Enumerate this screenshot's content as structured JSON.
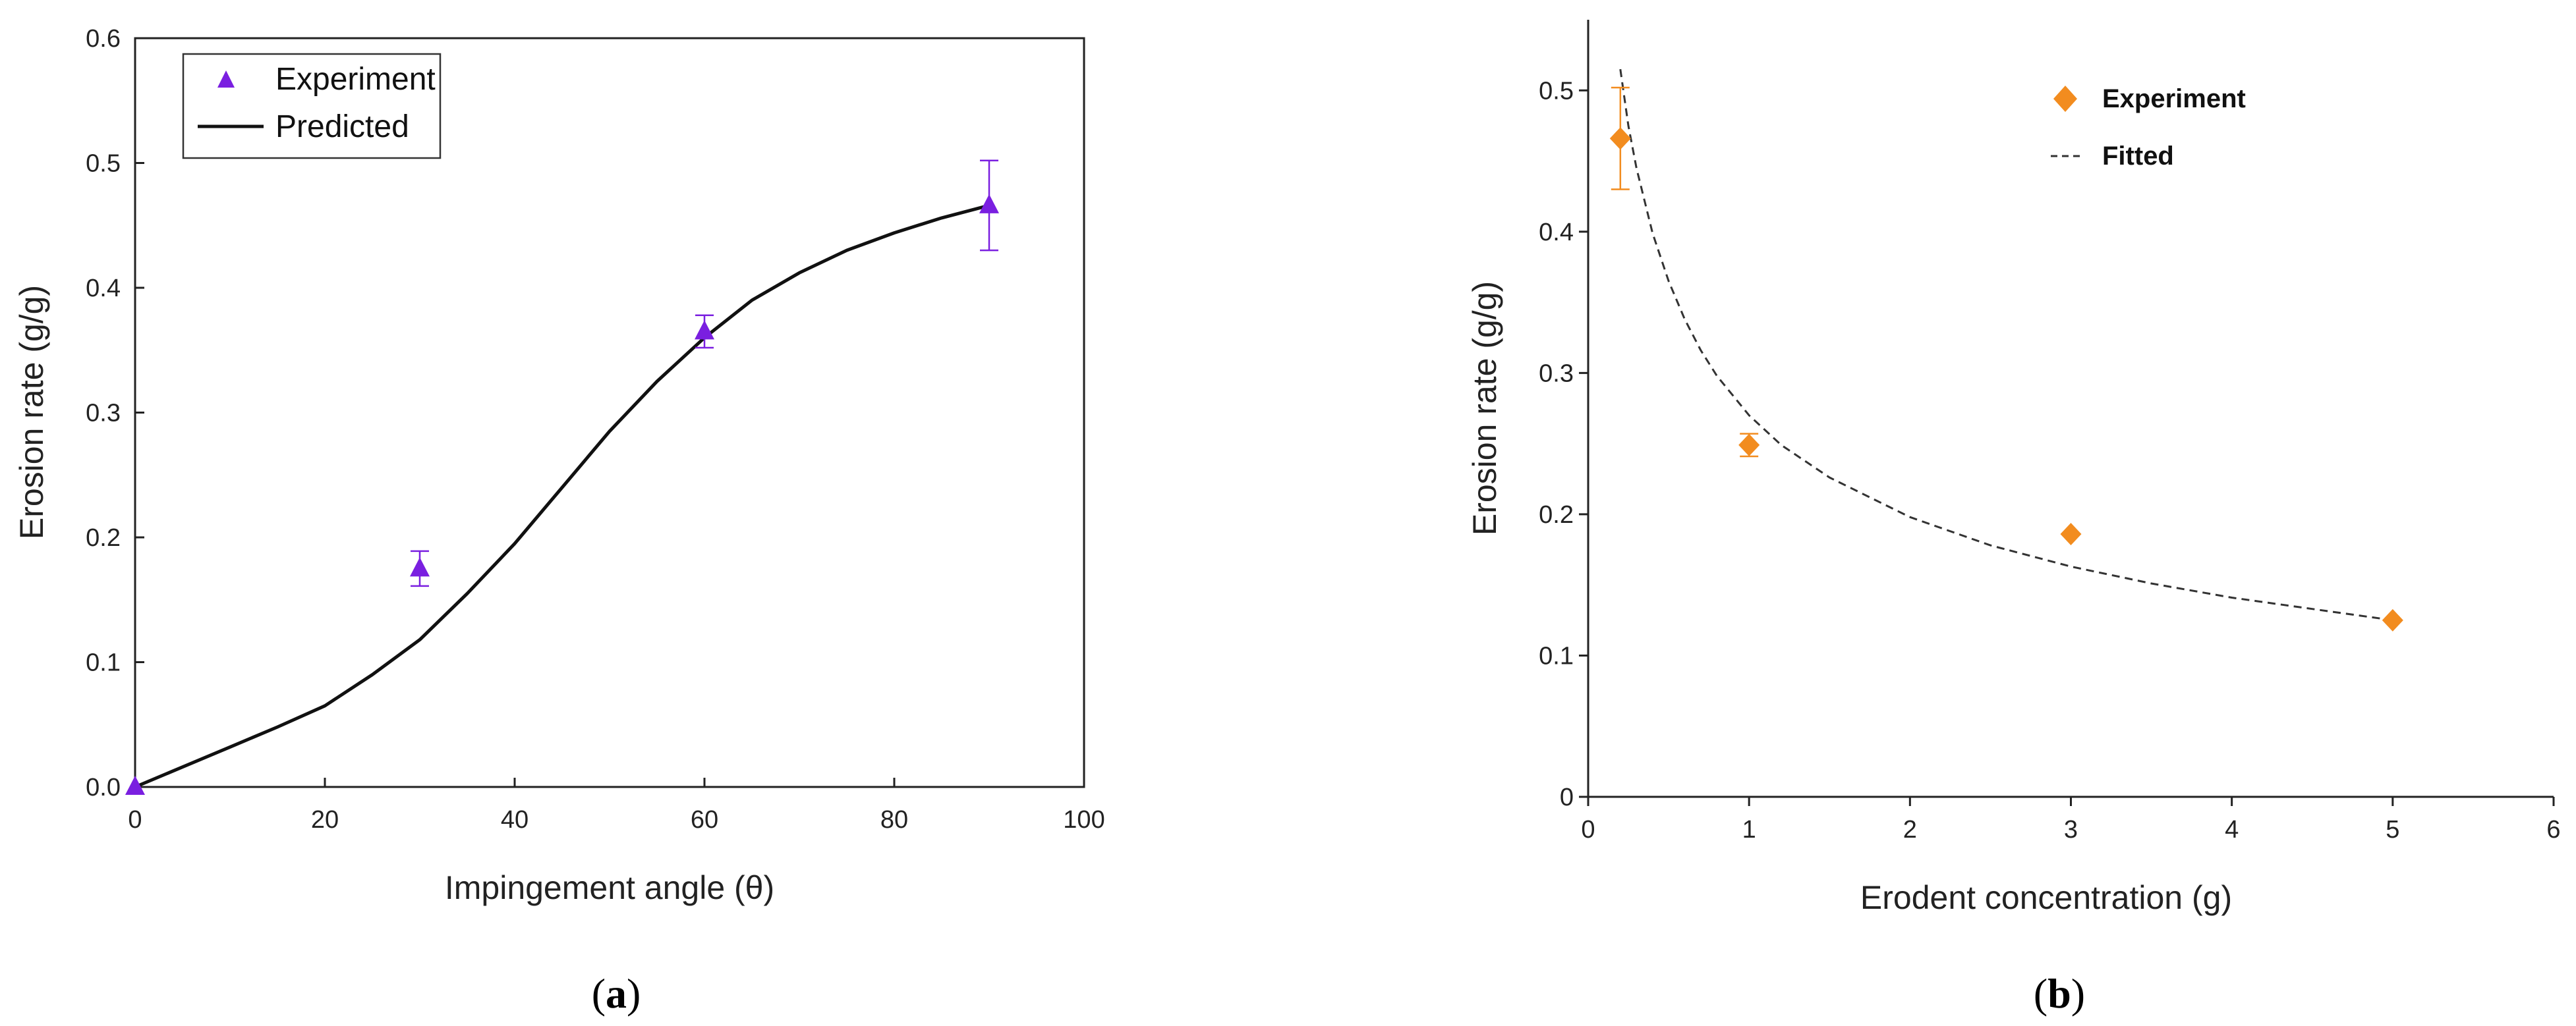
{
  "colors": {
    "experiment_a": "#7A1FE0",
    "predicted_a": "#111111",
    "experiment_b": "#F28C1F",
    "fitted_b": "#333333"
  },
  "panels": [
    {
      "label_open": "(",
      "label_letter": "a",
      "label_close": ")"
    },
    {
      "label_open": "(",
      "label_letter": "b",
      "label_close": ")"
    }
  ],
  "chart_data": [
    {
      "type": "scatter",
      "panel": "a",
      "xlabel": "Impingement angle (θ)",
      "ylabel": "Erosion rate (g/g)",
      "xlim": [
        0,
        100
      ],
      "ylim": [
        0,
        0.6
      ],
      "x_ticks": [
        "0",
        "20",
        "40",
        "60",
        "80",
        "100"
      ],
      "y_ticks": [
        "0.0",
        "0.1",
        "0.2",
        "0.3",
        "0.4",
        "0.5",
        "0.6"
      ],
      "grid": false,
      "legend_position": "top-left",
      "series": [
        {
          "name": "Experiment",
          "kind": "markers",
          "marker": "triangle",
          "x": [
            0,
            30,
            60,
            90
          ],
          "y": [
            0.0,
            0.175,
            0.365,
            0.466
          ],
          "err": [
            0.0,
            0.014,
            0.013,
            0.036
          ]
        },
        {
          "name": "Predicted",
          "kind": "line",
          "x": [
            0,
            5,
            10,
            15,
            20,
            25,
            30,
            35,
            40,
            45,
            50,
            55,
            60,
            65,
            70,
            75,
            80,
            85,
            90
          ],
          "y": [
            0.0,
            0.016,
            0.032,
            0.048,
            0.065,
            0.09,
            0.118,
            0.155,
            0.195,
            0.24,
            0.285,
            0.325,
            0.36,
            0.39,
            0.412,
            0.43,
            0.444,
            0.456,
            0.466
          ]
        }
      ]
    },
    {
      "type": "scatter",
      "panel": "b",
      "xlabel": "Erodent concentration (g)",
      "ylabel": "Erosion rate (g/g)",
      "xlim": [
        0,
        6
      ],
      "ylim": [
        0,
        0.55
      ],
      "x_ticks": [
        "0",
        "1",
        "2",
        "3",
        "4",
        "5",
        "6"
      ],
      "y_ticks": [
        "0",
        "0.1",
        "0.2",
        "0.3",
        "0.4",
        "0.5"
      ],
      "grid": false,
      "legend_position": "top-right",
      "series": [
        {
          "name": "Experiment",
          "kind": "markers",
          "marker": "diamond",
          "x": [
            0.2,
            1,
            3,
            5
          ],
          "y": [
            0.466,
            0.249,
            0.186,
            0.125
          ],
          "err": [
            0.036,
            0.008,
            0.0,
            0.0
          ]
        },
        {
          "name": "Fitted",
          "kind": "dashed-line",
          "x": [
            0.2,
            0.25,
            0.3,
            0.4,
            0.5,
            0.6,
            0.7,
            0.8,
            1.0,
            1.2,
            1.5,
            2.0,
            2.5,
            3.0,
            3.5,
            4.0,
            4.5,
            5.0
          ],
          "y": [
            0.515,
            0.475,
            0.445,
            0.399,
            0.365,
            0.338,
            0.316,
            0.298,
            0.27,
            0.249,
            0.226,
            0.198,
            0.178,
            0.163,
            0.151,
            0.141,
            0.133,
            0.125
          ]
        }
      ]
    }
  ]
}
